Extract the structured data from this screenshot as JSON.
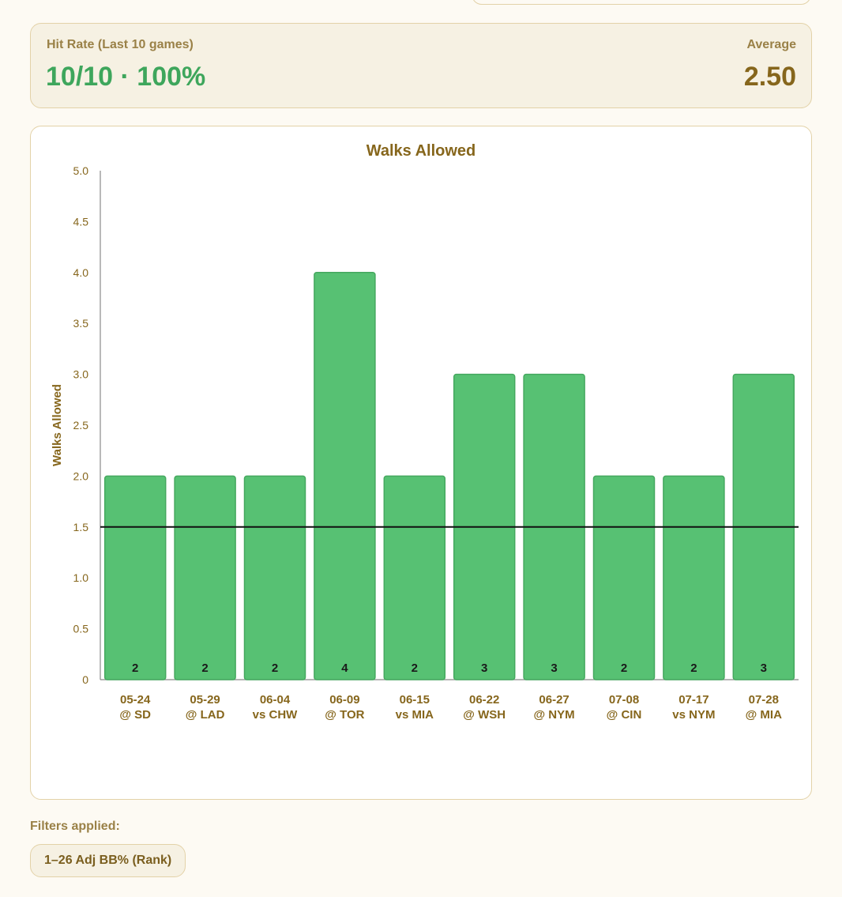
{
  "summary": {
    "hit_rate_label": "Hit Rate (Last 10 games)",
    "hit_rate_value": "10/10 · 100%",
    "average_label": "Average",
    "average_value": "2.50"
  },
  "filters": {
    "label": "Filters applied:",
    "chips": [
      "1–26 Adj BB% (Rank)"
    ]
  },
  "colors": {
    "bar_fill": "#57c173",
    "bar_stroke": "#45a85f",
    "line": "#111111",
    "text_brown": "#86661c",
    "accent_green": "#3ea65c"
  },
  "chart_data": {
    "type": "bar",
    "title": "Walks Allowed",
    "ylabel": "Walks Allowed",
    "xlabel": "",
    "ylim": [
      0,
      5
    ],
    "yticks": [
      "0",
      "0.5",
      "1.0",
      "1.5",
      "2.0",
      "2.5",
      "3.0",
      "3.5",
      "4.0",
      "4.5",
      "5.0"
    ],
    "threshold": 1.5,
    "grid": false,
    "categories": [
      [
        "05-24",
        "@ SD"
      ],
      [
        "05-29",
        "@ LAD"
      ],
      [
        "06-04",
        "vs CHW"
      ],
      [
        "06-09",
        "@ TOR"
      ],
      [
        "06-15",
        "vs MIA"
      ],
      [
        "06-22",
        "@ WSH"
      ],
      [
        "06-27",
        "@ NYM"
      ],
      [
        "07-08",
        "@ CIN"
      ],
      [
        "07-17",
        "vs NYM"
      ],
      [
        "07-28",
        "@ MIA"
      ]
    ],
    "values": [
      2,
      2,
      2,
      4,
      2,
      3,
      3,
      2,
      2,
      3
    ]
  }
}
